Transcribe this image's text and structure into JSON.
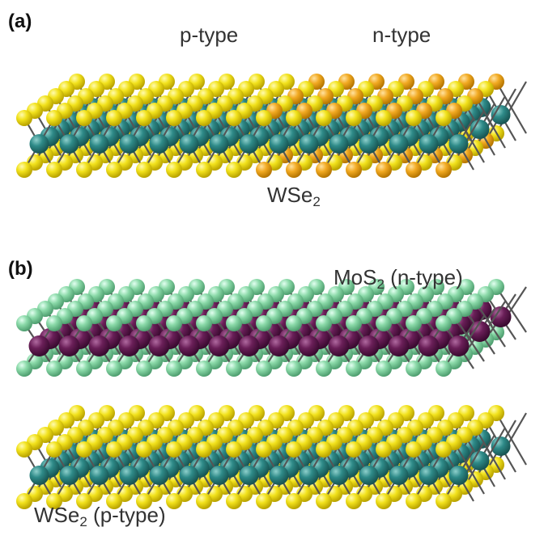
{
  "panel_a": {
    "label": "(a)",
    "left_label": "p-type",
    "right_label": "n-type",
    "material": [
      "WSe",
      "2"
    ]
  },
  "panel_b": {
    "label": "(b)",
    "top_layer": [
      "MoS",
      "2",
      " (n-type)"
    ],
    "bottom_layer": [
      "WSe",
      "2",
      " (p-type)"
    ]
  }
}
